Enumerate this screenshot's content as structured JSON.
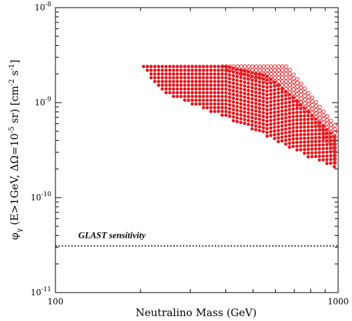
{
  "chart_data": {
    "type": "scatter",
    "xscale": "log",
    "yscale": "log",
    "xlim": [
      100,
      1000
    ],
    "ylim": [
      1e-11,
      1e-08
    ],
    "xlabel": "Neutralino Mass (GeV)",
    "ylabel": "φγ (E>1GeV, ΔΩ=10⁻⁵ sr) [cm⁻² s⁻¹]",
    "x_ticks": [
      {
        "value": 100,
        "label": "100"
      },
      {
        "value": 1000,
        "label": "1000"
      }
    ],
    "y_ticks": [
      {
        "value": 1e-08,
        "base": "10",
        "exp": "-8"
      },
      {
        "value": 1e-09,
        "base": "10",
        "exp": "-9"
      },
      {
        "value": 1e-10,
        "base": "10",
        "exp": "-10"
      },
      {
        "value": 1e-11,
        "base": "10",
        "exp": "-11"
      }
    ],
    "y_label_parts": {
      "phi": "φ",
      "gamma": "γ",
      "mid1": " (E>1GeV, ΔΩ=10",
      "exp1": "-5",
      "mid2": " sr) [cm",
      "exp2": "-2",
      "mid3": " s",
      "exp3": "-1",
      "end": "]"
    },
    "series": [
      {
        "marker": "filled-circle",
        "color": "#e8141a",
        "region": {
          "x_min": 205,
          "x_max": 1000,
          "upper_edge": [
            [
              205,
              2.4e-09
            ],
            [
              400,
              2.4e-09
            ],
            [
              560,
              1.9e-09
            ],
            [
              700,
              1.1e-09
            ],
            [
              1000,
              4e-10
            ]
          ],
          "lower_edge": [
            [
              205,
              2.2e-09
            ],
            [
              250,
              1.2e-09
            ],
            [
              400,
              7e-10
            ],
            [
              600,
              4e-10
            ],
            [
              800,
              2.6e-10
            ],
            [
              1000,
              2e-10
            ]
          ]
        }
      },
      {
        "marker": "open-circle",
        "color": "#e8141a",
        "region": {
          "x_min": 390,
          "x_max": 1000,
          "upper_edge": [
            [
              390,
              2.4e-09
            ],
            [
              660,
              2.4e-09
            ],
            [
              780,
              1.3e-09
            ],
            [
              1000,
              5.2e-10
            ]
          ],
          "lower_edge": [
            [
              390,
              2.2e-09
            ],
            [
              600,
              1.5e-09
            ],
            [
              800,
              7e-10
            ],
            [
              900,
              4e-10
            ],
            [
              1000,
              1.9e-10
            ]
          ]
        }
      }
    ],
    "reference_line": {
      "label": "GLAST sensitivity",
      "y": 3.1e-11,
      "style": "dotted"
    }
  }
}
